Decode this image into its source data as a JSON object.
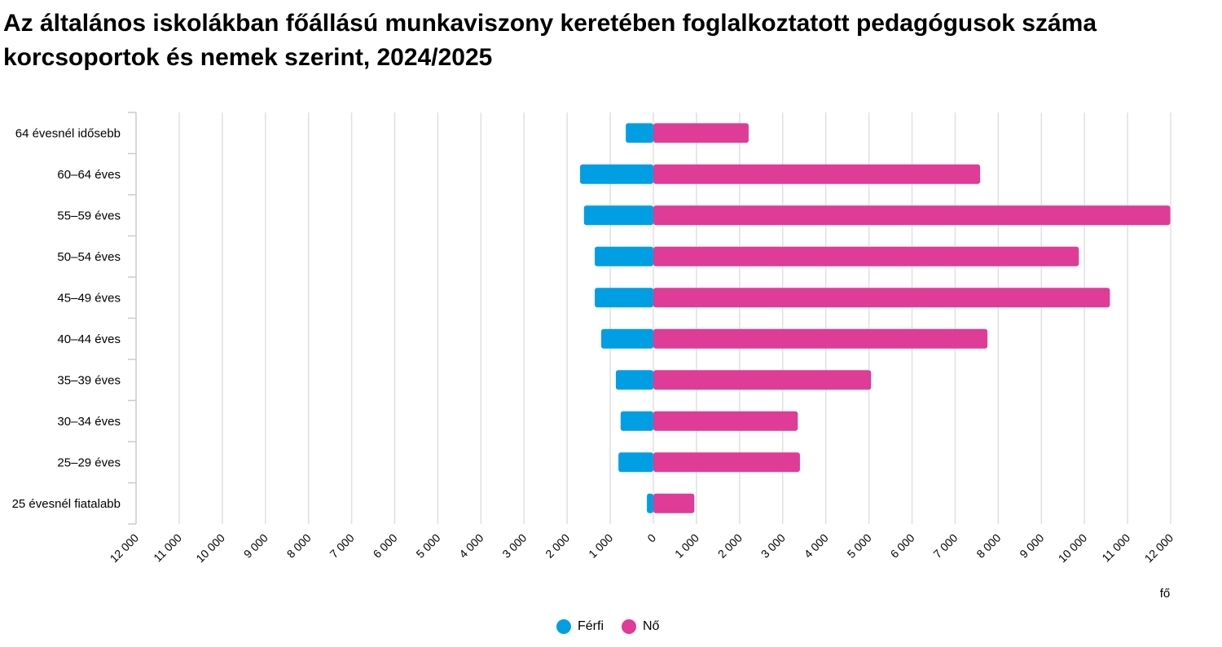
{
  "title": "Az általános iskolákban főállású munkaviszony keretében foglalkoztatott pedagógusok száma korcsoportok és nemek szerint, 2024/2025",
  "chart_data": {
    "type": "bar",
    "orientation": "horizontal",
    "layout": "population-pyramid",
    "title": "Az általános iskolákban főállású munkaviszony keretében foglalkoztatott pedagógusok száma korcsoportok és nemek szerint, 2024/2025",
    "xlabel": "fő",
    "categories": [
      "64 évesnél idősebb",
      "60–64 éves",
      "55–59 éves",
      "50–54 éves",
      "45–49 éves",
      "40–44 éves",
      "35–39 éves",
      "30–34 éves",
      "25–29 éves",
      "25 évesnél fiatalabb"
    ],
    "series": [
      {
        "name": "Férfi",
        "color": "#009fe3",
        "side": "left",
        "values": [
          640,
          1700,
          1610,
          1360,
          1360,
          1210,
          870,
          760,
          810,
          150
        ]
      },
      {
        "name": "Nő",
        "color": "#de3c96",
        "side": "right",
        "values": [
          2210,
          7580,
          11990,
          9870,
          10590,
          7750,
          5050,
          3350,
          3400,
          950
        ]
      }
    ],
    "xlim": [
      -12000,
      12000
    ],
    "x_tick_labels": [
      "12 000",
      "11 000",
      "10 000",
      "9 000",
      "8 000",
      "7 000",
      "6 000",
      "5 000",
      "4 000",
      "3 000",
      "2 000",
      "1 000",
      "0",
      "1 000",
      "2 000",
      "3 000",
      "4 000",
      "5 000",
      "6 000",
      "7 000",
      "8 000",
      "9 000",
      "10 000",
      "11 000",
      "12 000"
    ],
    "grid": true,
    "legend_position": "bottom"
  }
}
